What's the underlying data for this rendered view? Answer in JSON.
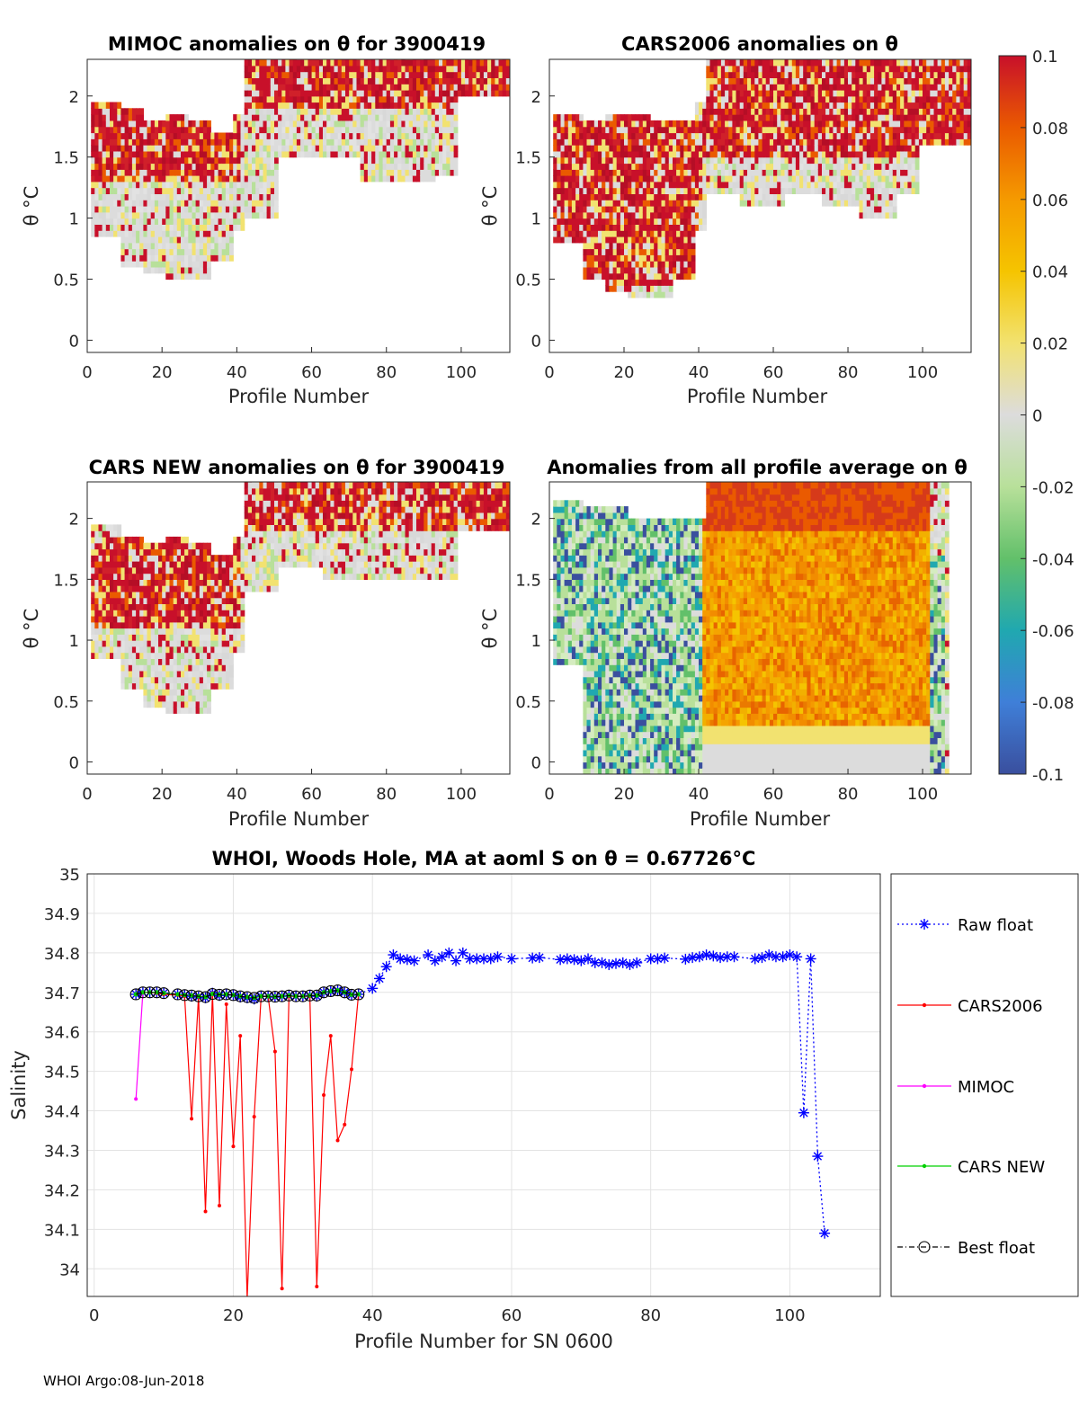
{
  "footer": "WHOI Argo:08-Jun-2018",
  "colorbar": {
    "ticks": [
      "0.1",
      "0.08",
      "0.06",
      "0.04",
      "0.02",
      "0",
      "-0.02",
      "-0.04",
      "-0.06",
      "-0.08",
      "-0.1"
    ],
    "stops": [
      "#3a4f9e",
      "#3f7fd8",
      "#20a8b0",
      "#62c06a",
      "#b8e09a",
      "#dcdcdc",
      "#f2e270",
      "#f5c400",
      "#f59a00",
      "#ea5a00",
      "#c8102a"
    ]
  },
  "chart_data": [
    {
      "type": "heatmap",
      "title": "MIMOC anomalies on θ  for 3900419",
      "xlabel": "Profile Number",
      "ylabel": "θ °C",
      "xlim": [
        0,
        113
      ],
      "ylim": [
        -0.1,
        2.3
      ],
      "xticks": [
        "0",
        "20",
        "40",
        "60",
        "80",
        "100"
      ],
      "yticks": [
        "0",
        "0.5",
        "1",
        "1.5",
        "2"
      ],
      "coverage": [
        [
          1,
          0.85,
          1.95
        ],
        [
          8,
          0.6,
          1.9
        ],
        [
          14,
          0.55,
          1.8
        ],
        [
          20,
          0.5,
          1.85
        ],
        [
          26,
          0.5,
          1.8
        ],
        [
          32,
          0.65,
          1.7
        ],
        [
          38,
          0.9,
          1.85
        ],
        [
          41,
          1.0,
          2.3
        ],
        [
          50,
          1.5,
          2.3
        ],
        [
          62,
          1.5,
          2.3
        ],
        [
          72,
          1.3,
          2.3
        ],
        [
          82,
          1.3,
          2.3
        ],
        [
          92,
          1.35,
          2.3
        ],
        [
          98,
          2.0,
          2.3
        ],
        [
          112,
          2.1,
          2.3
        ]
      ],
      "regions": [
        {
          "x": [
            0,
            41
          ],
          "y": [
            1.3,
            1.95
          ],
          "tone": "warm"
        },
        {
          "x": [
            41,
            113
          ],
          "y": [
            1.9,
            2.3
          ],
          "tone": "warm"
        },
        {
          "x": [
            0,
            41
          ],
          "y": [
            0.5,
            1.3
          ],
          "tone": "neutral"
        }
      ]
    },
    {
      "type": "heatmap",
      "title": "CARS2006 anomalies on θ",
      "xlabel": "Profile Number",
      "ylabel": "θ °C",
      "xlim": [
        0,
        113
      ],
      "ylim": [
        -0.1,
        2.3
      ],
      "xticks": [
        "0",
        "20",
        "40",
        "60",
        "80",
        "100"
      ],
      "yticks": [
        "0",
        "0.5",
        "1",
        "1.5",
        "2"
      ],
      "coverage": [
        [
          1,
          0.8,
          1.85
        ],
        [
          8,
          0.5,
          1.8
        ],
        [
          14,
          0.4,
          1.85
        ],
        [
          20,
          0.35,
          1.85
        ],
        [
          26,
          0.35,
          1.8
        ],
        [
          32,
          0.5,
          1.8
        ],
        [
          38,
          0.9,
          1.95
        ],
        [
          41,
          1.2,
          2.3
        ],
        [
          50,
          1.1,
          2.3
        ],
        [
          62,
          1.2,
          2.3
        ],
        [
          72,
          1.1,
          2.3
        ],
        [
          82,
          1.0,
          2.3
        ],
        [
          92,
          1.2,
          2.3
        ],
        [
          98,
          1.6,
          2.3
        ],
        [
          112,
          1.6,
          2.3
        ]
      ],
      "regions": [
        {
          "x": [
            0,
            41
          ],
          "y": [
            0.4,
            1.85
          ],
          "tone": "warm"
        },
        {
          "x": [
            41,
            113
          ],
          "y": [
            1.5,
            2.3
          ],
          "tone": "warm"
        },
        {
          "x": [
            41,
            100
          ],
          "y": [
            1.0,
            1.5
          ],
          "tone": "neutral"
        }
      ]
    },
    {
      "type": "heatmap",
      "title": "CARS NEW anomalies on θ for 3900419",
      "xlabel": "Profile Number",
      "ylabel": "θ °C",
      "xlim": [
        0,
        113
      ],
      "ylim": [
        -0.1,
        2.3
      ],
      "xticks": [
        "0",
        "20",
        "40",
        "60",
        "80",
        "100"
      ],
      "yticks": [
        "0",
        "0.5",
        "1",
        "1.5",
        "2"
      ],
      "coverage": [
        [
          1,
          0.85,
          1.95
        ],
        [
          8,
          0.6,
          1.85
        ],
        [
          14,
          0.45,
          1.8
        ],
        [
          20,
          0.4,
          1.85
        ],
        [
          26,
          0.4,
          1.8
        ],
        [
          32,
          0.6,
          1.7
        ],
        [
          38,
          0.9,
          1.85
        ],
        [
          41,
          1.4,
          2.3
        ],
        [
          50,
          1.6,
          2.3
        ],
        [
          62,
          1.5,
          2.3
        ],
        [
          72,
          1.5,
          2.3
        ],
        [
          82,
          1.5,
          2.3
        ],
        [
          92,
          1.5,
          2.3
        ],
        [
          98,
          1.9,
          2.3
        ],
        [
          112,
          2.0,
          2.3
        ]
      ],
      "regions": [
        {
          "x": [
            0,
            41
          ],
          "y": [
            1.1,
            1.85
          ],
          "tone": "warm"
        },
        {
          "x": [
            41,
            113
          ],
          "y": [
            1.9,
            2.3
          ],
          "tone": "warm"
        },
        {
          "x": [
            0,
            41
          ],
          "y": [
            0.4,
            1.1
          ],
          "tone": "neutral"
        }
      ]
    },
    {
      "type": "heatmap",
      "title": "Anomalies from all profile average on θ",
      "xlabel": "Profile Number",
      "ylabel": "θ °C",
      "xlim": [
        0,
        113
      ],
      "ylim": [
        -0.1,
        2.3
      ],
      "xticks": [
        "0",
        "20",
        "40",
        "60",
        "80",
        "100"
      ],
      "yticks": [
        "0",
        "0.5",
        "1",
        "1.5",
        "2"
      ],
      "coverage": [
        [
          1,
          0.8,
          2.15
        ],
        [
          8,
          -0.1,
          2.1
        ],
        [
          20,
          -0.1,
          2.0
        ],
        [
          30,
          -0.1,
          2.0
        ],
        [
          41,
          -0.1,
          2.3
        ],
        [
          60,
          -0.1,
          2.3
        ],
        [
          80,
          -0.1,
          2.3
        ],
        [
          100,
          -0.1,
          2.3
        ],
        [
          106,
          -0.1,
          1.7
        ]
      ],
      "regions": [
        {
          "x": [
            0,
            41
          ],
          "y": [
            -0.1,
            2.15
          ],
          "tone": "cool"
        },
        {
          "x": [
            41,
            102
          ],
          "y": [
            -0.1,
            2.3
          ],
          "tone": "warm"
        },
        {
          "x": [
            102,
            106
          ],
          "y": [
            -0.1,
            1.7
          ],
          "tone": "cool"
        }
      ]
    },
    {
      "type": "line",
      "title": "WHOI, Woods Hole, MA at aoml S on θ = 0.67726",
      "title_unit": "°C",
      "xlabel": "Profile Number for SN 0600",
      "ylabel": "Salinity",
      "xlim": [
        -1,
        113
      ],
      "ylim": [
        33.93,
        35
      ],
      "xticks": [
        "0",
        "20",
        "40",
        "60",
        "80",
        "100"
      ],
      "yticks": [
        "34",
        "34.1",
        "34.2",
        "34.3",
        "34.4",
        "34.5",
        "34.6",
        "34.7",
        "34.8",
        "34.9",
        "35"
      ],
      "legend": [
        "Raw float",
        "CARS2006",
        "MIMOC",
        "CARS NEW",
        "Best float"
      ],
      "series": [
        {
          "name": "Raw float",
          "color": "#0000ff",
          "x": [
            6,
            7,
            8,
            9,
            10,
            12,
            13,
            14,
            15,
            16,
            17,
            18,
            19,
            20,
            21,
            22,
            23,
            24,
            25,
            26,
            27,
            28,
            29,
            30,
            31,
            32,
            33,
            34,
            35,
            36,
            37,
            38,
            40,
            41,
            42,
            43,
            44,
            45,
            46,
            48,
            49,
            50,
            51,
            52,
            53,
            54,
            55,
            56,
            57,
            58,
            60,
            63,
            64,
            67,
            68,
            69,
            70,
            71,
            72,
            73,
            74,
            75,
            76,
            77,
            78,
            80,
            81,
            82,
            85,
            86,
            87,
            88,
            89,
            90,
            91,
            92,
            95,
            96,
            97,
            98,
            99,
            100,
            101,
            102,
            103,
            104,
            105
          ],
          "y": [
            34.695,
            34.7,
            34.7,
            34.7,
            34.698,
            34.695,
            34.693,
            34.69,
            34.688,
            34.686,
            34.698,
            34.692,
            34.694,
            34.693,
            34.688,
            34.686,
            34.683,
            34.69,
            34.69,
            34.688,
            34.69,
            34.692,
            34.69,
            34.69,
            34.692,
            34.69,
            34.7,
            34.702,
            34.705,
            34.7,
            34.693,
            34.695,
            34.71,
            34.735,
            34.765,
            34.795,
            34.785,
            34.783,
            34.78,
            34.795,
            34.78,
            34.79,
            34.8,
            34.78,
            34.8,
            34.785,
            34.785,
            34.785,
            34.785,
            34.79,
            34.785,
            34.787,
            34.788,
            34.783,
            34.785,
            34.783,
            34.78,
            34.785,
            34.775,
            34.775,
            34.77,
            34.773,
            34.775,
            34.77,
            34.775,
            34.785,
            34.785,
            34.787,
            34.784,
            34.788,
            34.79,
            34.795,
            34.792,
            34.788,
            34.79,
            34.79,
            34.785,
            34.788,
            34.795,
            34.79,
            34.79,
            34.795,
            34.79,
            34.395,
            34.785,
            34.285,
            34.09
          ]
        },
        {
          "name": "CARS2006",
          "color": "#ff0000",
          "x": [
            6,
            7,
            8,
            9,
            10,
            12,
            13,
            14,
            15,
            16,
            17,
            18,
            19,
            20,
            21,
            22,
            23,
            24,
            25,
            26,
            27,
            28,
            29,
            30,
            31,
            32,
            33,
            34,
            35,
            36,
            37,
            38
          ],
          "y": [
            34.695,
            34.7,
            34.7,
            34.698,
            34.695,
            34.693,
            34.69,
            34.38,
            34.69,
            34.145,
            34.698,
            34.16,
            34.67,
            34.31,
            34.59,
            33.925,
            34.385,
            34.69,
            34.69,
            34.55,
            33.95,
            34.69,
            34.69,
            34.69,
            34.69,
            33.955,
            34.44,
            34.59,
            34.325,
            34.365,
            34.505,
            34.695
          ]
        },
        {
          "name": "MIMOC",
          "color": "#ff00ff",
          "x": [
            6,
            7
          ],
          "y": [
            34.43,
            34.7
          ]
        },
        {
          "name": "CARS NEW",
          "color": "#00d000",
          "x": [
            6,
            7,
            8,
            9,
            10,
            12,
            13,
            14,
            15,
            16,
            17,
            18,
            19,
            20,
            21,
            22,
            23,
            24,
            25,
            26,
            27,
            28,
            29,
            30,
            31,
            32,
            33,
            34,
            35,
            36,
            37,
            38
          ],
          "y": [
            34.695,
            34.7,
            34.7,
            34.7,
            34.698,
            34.695,
            34.693,
            34.692,
            34.69,
            34.688,
            34.696,
            34.694,
            34.695,
            34.693,
            34.69,
            34.688,
            34.686,
            34.69,
            34.69,
            34.689,
            34.69,
            34.692,
            34.69,
            34.69,
            34.692,
            34.692,
            34.7,
            34.703,
            34.705,
            34.7,
            34.694,
            34.695
          ]
        },
        {
          "name": "Best float",
          "color": "#000000",
          "x": [
            6,
            7,
            8,
            9,
            10,
            12,
            13,
            14,
            15,
            16,
            17,
            18,
            19,
            20,
            21,
            22,
            23,
            24,
            25,
            26,
            27,
            28,
            29,
            30,
            31,
            32,
            33,
            34,
            35,
            36,
            37,
            38
          ],
          "y": [
            34.695,
            34.7,
            34.7,
            34.7,
            34.698,
            34.695,
            34.693,
            34.692,
            34.69,
            34.688,
            34.696,
            34.694,
            34.695,
            34.693,
            34.69,
            34.688,
            34.686,
            34.69,
            34.69,
            34.689,
            34.69,
            34.692,
            34.69,
            34.69,
            34.692,
            34.692,
            34.7,
            34.703,
            34.705,
            34.7,
            34.694,
            34.695
          ]
        }
      ]
    }
  ]
}
